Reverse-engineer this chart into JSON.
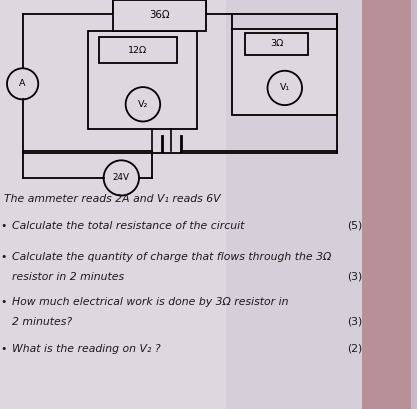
{
  "bg_color": "#c8b8c8",
  "paper_color": "#ddd5de",
  "paper_right_color": "#c4a0b0",
  "lw": 1.3,
  "color": "black",
  "title_text": "The ammeter reads 2A and V₁ reads 6V",
  "q1": "Calculate the total resistance of the circuit",
  "q1_mark": "(5)",
  "q2a": "Calculate the quantity of charge that flows through the 3Ω",
  "q2b": "resistor in 2 minutes",
  "q2_mark": "(3)",
  "q3a": "How much electrical work is done by 3Ω resistor in",
  "q3b": "2 minutes?",
  "q3_mark": "(3)",
  "q4": "What is the reading on V₂ ?",
  "q4_mark": "(2)",
  "font_size": 7.8,
  "font_size_small": 6.8
}
